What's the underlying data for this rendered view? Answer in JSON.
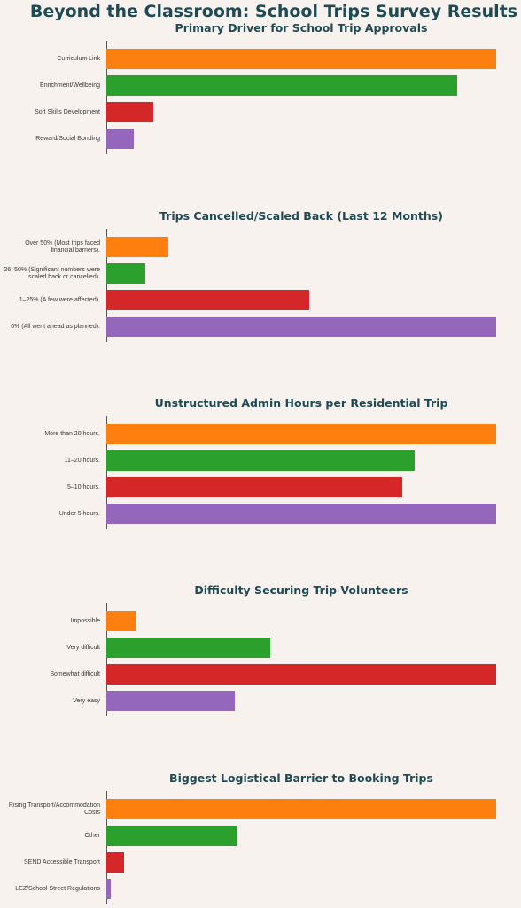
{
  "title": "Beyond the Classroom: School Trips Survey Results",
  "colors": [
    "#ff7f0e",
    "#2ca02c",
    "#d62728",
    "#9467bd"
  ],
  "chart_data": [
    {
      "type": "bar",
      "orientation": "horizontal",
      "title": "Primary Driver for School Trip Approvals",
      "categories": [
        "Curriculum Link",
        "Enrichment/Wellbeing",
        "Soft Skills Development",
        "Reward/Social Bonding"
      ],
      "values": [
        100,
        90,
        12,
        7
      ],
      "xlim": [
        0,
        100
      ]
    },
    {
      "type": "bar",
      "orientation": "horizontal",
      "title": "Trips Cancelled/Scaled Back (Last 12 Months)",
      "categories": [
        "Over 50% (Most trips faced financial barriers).",
        "26–50% (Significant numbers were scaled back or cancelled).",
        "1–25% (A few were affected).",
        "0% (All went ahead as planned)."
      ],
      "values": [
        16,
        10,
        52,
        100
      ],
      "xlim": [
        0,
        100
      ]
    },
    {
      "type": "bar",
      "orientation": "horizontal",
      "title": "Unstructured Admin Hours per Residential Trip",
      "categories": [
        "More than 20 hours.",
        "11–20 hours.",
        "5–10 hours.",
        "Under 5 hours."
      ],
      "values": [
        100,
        79,
        76,
        100
      ],
      "xlim": [
        0,
        100
      ]
    },
    {
      "type": "bar",
      "orientation": "horizontal",
      "title": "Difficulty Securing Trip Volunteers",
      "categories": [
        "Impossible",
        "Very difficult",
        "Somewhat difficult",
        "Very easy"
      ],
      "values": [
        7.5,
        42,
        100,
        33
      ],
      "xlim": [
        0,
        100
      ]
    },
    {
      "type": "bar",
      "orientation": "horizontal",
      "title": "Biggest Logistical Barrier to Booking Trips",
      "categories": [
        "Rising Transport/Accommodation Costs",
        "Other",
        "SEND Accessible Transport",
        "LEZ/School Street Regulations"
      ],
      "values": [
        100,
        33.5,
        4.5,
        1.2
      ],
      "xlim": [
        0,
        100
      ]
    }
  ]
}
